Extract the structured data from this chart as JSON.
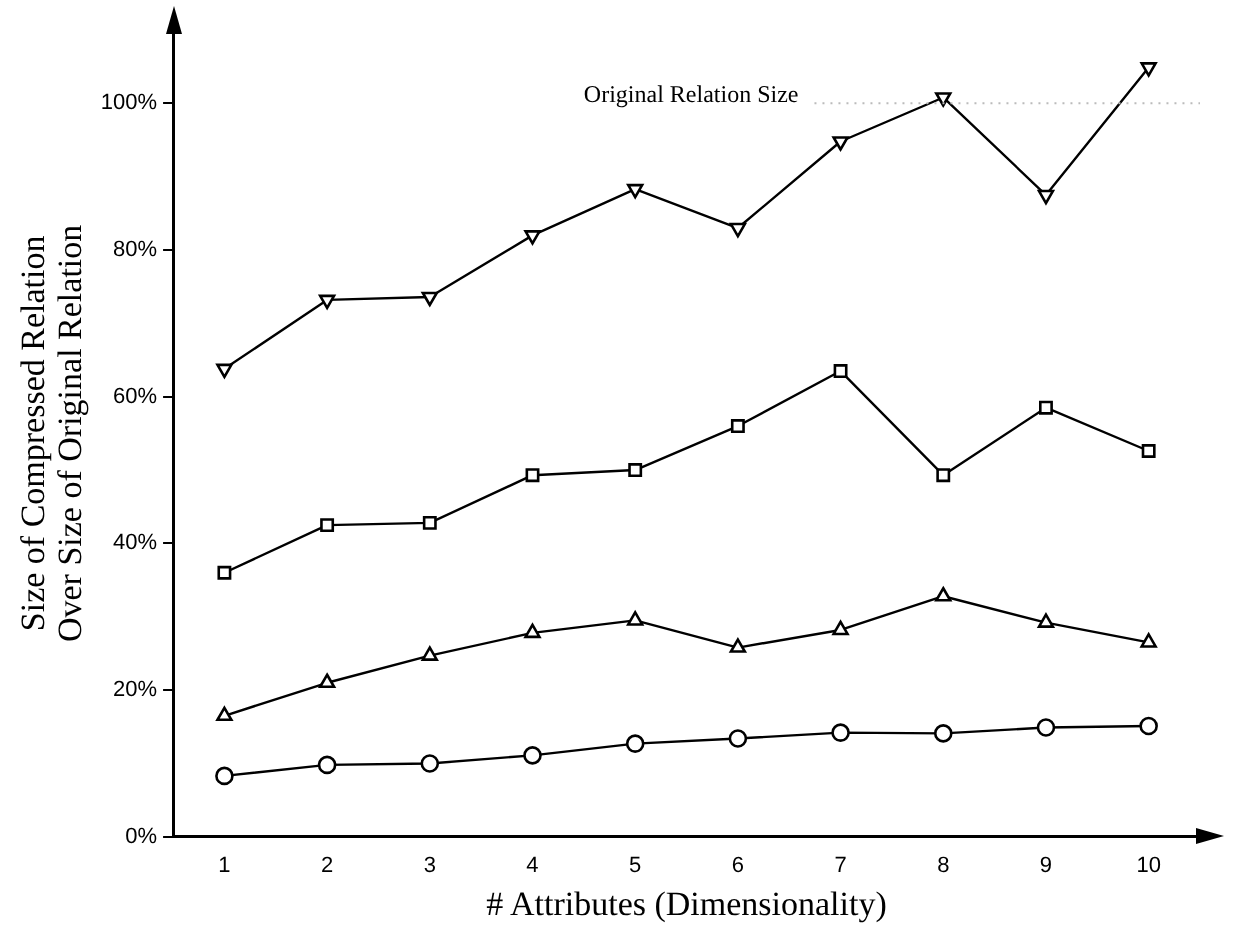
{
  "chart_data": {
    "type": "line",
    "xlabel": "# Attributes (Dimensionality)",
    "ylabel": "Size of Compressed Relation\nOver Size of Original Relation",
    "x": [
      1,
      2,
      3,
      4,
      5,
      6,
      7,
      8,
      9,
      10
    ],
    "xlim": [
      0.5,
      10.5
    ],
    "xticks": [
      1,
      2,
      3,
      4,
      5,
      6,
      7,
      8,
      9,
      10
    ],
    "ylim": [
      0,
      110
    ],
    "yticks": [
      {
        "value": 0,
        "label": "0%"
      },
      {
        "value": 20,
        "label": "20%"
      },
      {
        "value": 40,
        "label": "40%"
      },
      {
        "value": 60,
        "label": "60%"
      },
      {
        "value": 80,
        "label": "80%"
      },
      {
        "value": 100,
        "label": "100%"
      }
    ],
    "series": [
      {
        "color": "#000000",
        "marker": "triangle-down",
        "values": [
          63.8,
          73.2,
          73.6,
          82,
          88.3,
          83,
          94.8,
          100.8,
          87.5,
          104.9
        ]
      },
      {
        "color": "#000000",
        "marker": "square",
        "values": [
          36,
          42.5,
          42.8,
          49.3,
          50,
          56,
          63.5,
          49.3,
          58.5,
          52.6
        ]
      },
      {
        "color": "#000000",
        "marker": "triangle",
        "values": [
          16.5,
          21,
          24.7,
          27.8,
          29.5,
          25.8,
          28.2,
          32.8,
          29.2,
          26.5
        ]
      },
      {
        "color": "#000000",
        "marker": "circle",
        "values": [
          8.3,
          9.8,
          10,
          11.1,
          12.7,
          13.4,
          14.2,
          14.1,
          14.9,
          15.1
        ]
      }
    ],
    "ref_lines": [
      {
        "axis": "y",
        "value": 100,
        "label": "Original Relation Size",
        "color": "#bbbbbb",
        "line_style": "dotted"
      }
    ],
    "grid": false,
    "legend": false,
    "line_style": "solid"
  }
}
